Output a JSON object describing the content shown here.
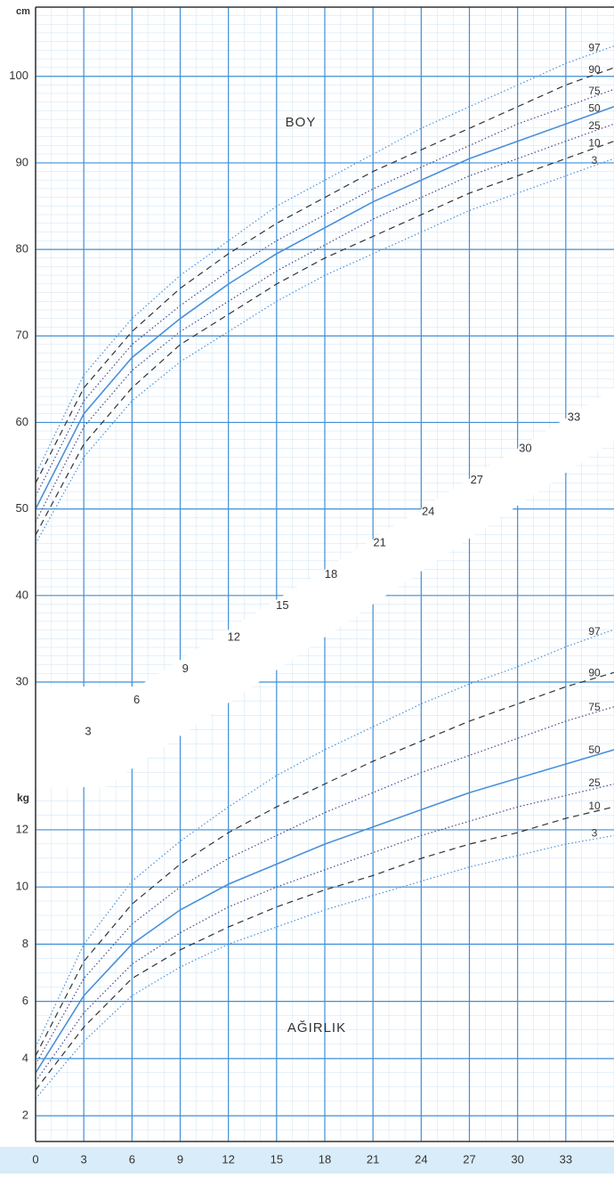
{
  "chart_data": [
    {
      "type": "line",
      "title": "BOY",
      "y_label": "cm",
      "x": [
        0,
        3,
        6,
        9,
        12,
        15,
        18,
        21,
        24,
        27,
        30,
        33,
        36
      ],
      "xlim": [
        0,
        36
      ],
      "ylim": [
        30,
        108
      ],
      "yticks": [
        30,
        40,
        50,
        60,
        70,
        80,
        90,
        100
      ],
      "grid": true,
      "series": [
        {
          "name": "97",
          "color": "#4a90d9",
          "dash": "dotted",
          "values": [
            54,
            65.5,
            72,
            77,
            81,
            85,
            88,
            91,
            94,
            96.5,
            99,
            101.5,
            103.5
          ]
        },
        {
          "name": "90",
          "color": "#333333",
          "dash": "dashed",
          "values": [
            53,
            64,
            70.5,
            75.5,
            79.5,
            83,
            86,
            89,
            91.5,
            94,
            96.5,
            99,
            101
          ]
        },
        {
          "name": "75",
          "color": "#4a4a8a",
          "dash": "dotted",
          "values": [
            51.5,
            62.5,
            69,
            73.5,
            77.5,
            81,
            84,
            87,
            89.5,
            92,
            94.5,
            96.5,
            98.5
          ]
        },
        {
          "name": "50",
          "color": "#4a90d9",
          "dash": "solid",
          "values": [
            50,
            61,
            67.5,
            72,
            76,
            79.5,
            82.5,
            85.5,
            88,
            90.5,
            92.5,
            94.5,
            96.5
          ]
        },
        {
          "name": "25",
          "color": "#4a4a8a",
          "dash": "dotted",
          "values": [
            48.5,
            59.5,
            66,
            70.5,
            74,
            77.5,
            80.5,
            83.5,
            86,
            88.5,
            90.5,
            92.5,
            94.5
          ]
        },
        {
          "name": "10",
          "color": "#333333",
          "dash": "dashed",
          "values": [
            47,
            57.5,
            64,
            69,
            72.5,
            76,
            79,
            81.5,
            84,
            86.5,
            88.5,
            90.5,
            92.5
          ]
        },
        {
          "name": "3",
          "color": "#4a90d9",
          "dash": "dotted",
          "values": [
            46,
            56,
            62.5,
            67,
            70.5,
            74,
            77,
            79.5,
            82,
            84.5,
            86.5,
            88.5,
            90.5
          ]
        }
      ]
    },
    {
      "type": "line",
      "title": "AĞIRLIK",
      "y_label": "kg",
      "x": [
        0,
        3,
        6,
        9,
        12,
        15,
        18,
        21,
        24,
        27,
        30,
        33,
        36
      ],
      "xlim": [
        0,
        36
      ],
      "xticks": [
        0,
        3,
        6,
        9,
        12,
        15,
        18,
        21,
        24,
        27,
        30,
        33
      ],
      "ylim": [
        1.1,
        20
      ],
      "yticks": [
        2,
        4,
        6,
        8,
        10,
        12
      ],
      "grid": true,
      "series": [
        {
          "name": "97",
          "color": "#4a90d9",
          "dash": "dotted",
          "values": [
            4.4,
            8.0,
            10.2,
            11.6,
            12.8,
            13.9,
            14.8,
            15.6,
            16.4,
            17.1,
            17.7,
            18.4,
            19.0
          ]
        },
        {
          "name": "90",
          "color": "#333333",
          "dash": "dashed",
          "values": [
            4.1,
            7.4,
            9.4,
            10.8,
            11.9,
            12.8,
            13.6,
            14.4,
            15.1,
            15.8,
            16.4,
            17.0,
            17.5
          ]
        },
        {
          "name": "75",
          "color": "#4a4a8a",
          "dash": "dotted",
          "values": [
            3.8,
            6.8,
            8.7,
            10.0,
            11.0,
            11.8,
            12.6,
            13.3,
            14.0,
            14.6,
            15.2,
            15.8,
            16.3
          ]
        },
        {
          "name": "50",
          "color": "#4a90d9",
          "dash": "solid",
          "values": [
            3.5,
            6.2,
            8.0,
            9.2,
            10.1,
            10.8,
            11.5,
            12.1,
            12.7,
            13.3,
            13.8,
            14.3,
            14.8
          ]
        },
        {
          "name": "25",
          "color": "#4a4a8a",
          "dash": "dotted",
          "values": [
            3.2,
            5.6,
            7.3,
            8.4,
            9.3,
            10.0,
            10.6,
            11.2,
            11.8,
            12.3,
            12.8,
            13.2,
            13.6
          ]
        },
        {
          "name": "10",
          "color": "#333333",
          "dash": "dashed",
          "values": [
            2.9,
            5.1,
            6.8,
            7.8,
            8.6,
            9.3,
            9.9,
            10.4,
            11.0,
            11.5,
            11.9,
            12.4,
            12.8
          ]
        },
        {
          "name": "3",
          "color": "#4a90d9",
          "dash": "dotted",
          "values": [
            2.6,
            4.6,
            6.2,
            7.2,
            8.0,
            8.6,
            9.2,
            9.7,
            10.2,
            10.7,
            11.1,
            11.5,
            11.8
          ]
        }
      ]
    }
  ],
  "diagonal_labels": [
    3,
    6,
    9,
    12,
    15,
    18,
    21,
    24,
    27,
    30,
    33
  ]
}
